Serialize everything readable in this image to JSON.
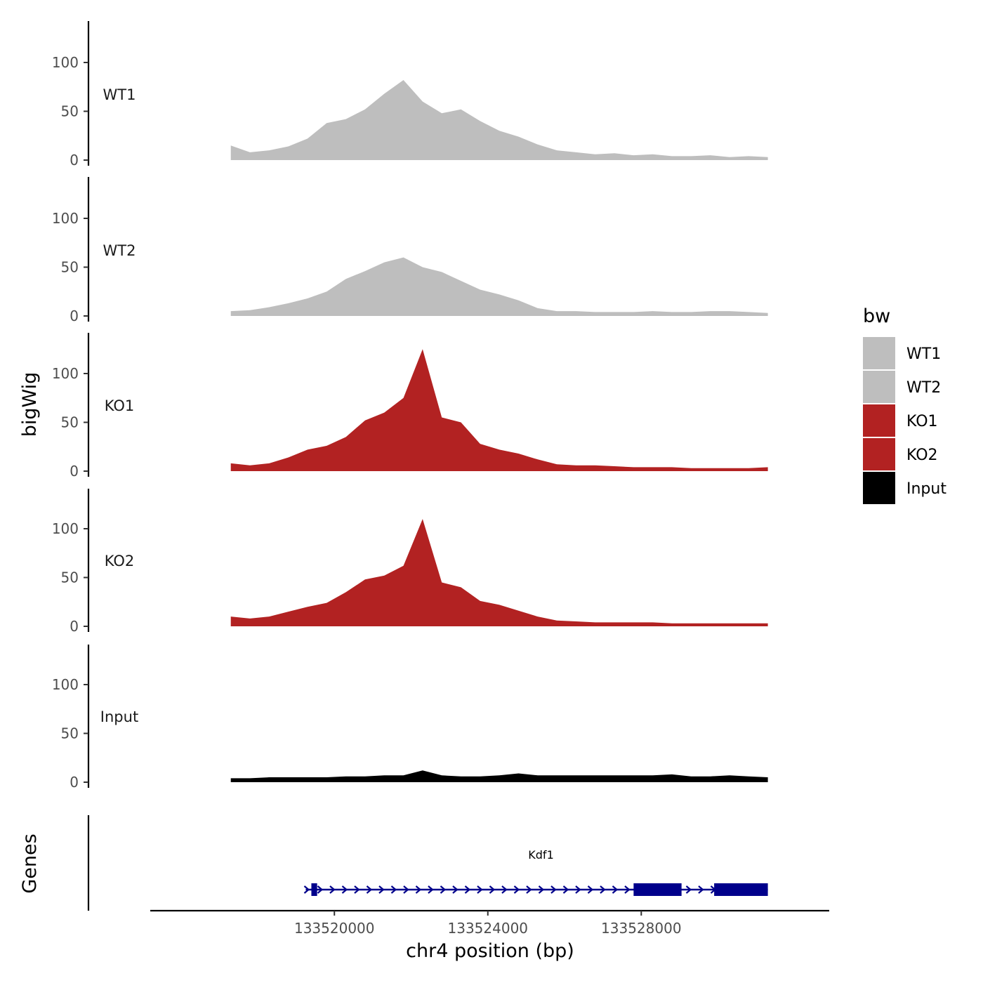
{
  "chart_data": {
    "type": "area",
    "title": "",
    "xlabel": "chr4 position (bp)",
    "ylabel": "bigWig",
    "genes_label": "Genes",
    "xlim": [
      133515200,
      133532900
    ],
    "xticks": [
      133520000,
      133524000,
      133528000
    ],
    "xtick_labels": [
      "133520000",
      "133524000",
      "133528000"
    ],
    "ylim": [
      0,
      140
    ],
    "yticks": [
      0,
      50,
      100
    ],
    "ytick_labels": [
      "0",
      "50",
      "100"
    ],
    "legend": {
      "title": "bw",
      "position": "right",
      "entries": [
        {
          "label": "WT1",
          "color": "#bebebe"
        },
        {
          "label": "WT2",
          "color": "#bebebe"
        },
        {
          "label": "KO1",
          "color": "#b22222"
        },
        {
          "label": "KO2",
          "color": "#b22222"
        },
        {
          "label": "Input",
          "color": "#000000"
        }
      ]
    },
    "x": [
      133517300,
      133517800,
      133518300,
      133518800,
      133519300,
      133519800,
      133520300,
      133520800,
      133521300,
      133521800,
      133522300,
      133522800,
      133523300,
      133523800,
      133524300,
      133524800,
      133525300,
      133525800,
      133526300,
      133526800,
      133527300,
      133527800,
      133528300,
      133528800,
      133529300,
      133529800,
      133530300,
      133530800,
      133531300
    ],
    "series": [
      {
        "name": "WT1",
        "color": "#bebebe",
        "values": [
          15,
          8,
          10,
          14,
          22,
          38,
          42,
          52,
          68,
          82,
          60,
          48,
          52,
          40,
          30,
          24,
          16,
          10,
          8,
          6,
          7,
          5,
          6,
          4,
          4,
          5,
          3,
          4,
          3
        ]
      },
      {
        "name": "WT2",
        "color": "#bebebe",
        "values": [
          5,
          6,
          9,
          13,
          18,
          25,
          38,
          46,
          55,
          60,
          50,
          45,
          36,
          27,
          22,
          16,
          8,
          5,
          5,
          4,
          4,
          4,
          5,
          4,
          4,
          5,
          5,
          4,
          3
        ]
      },
      {
        "name": "KO1",
        "color": "#b22222",
        "values": [
          8,
          6,
          8,
          14,
          22,
          26,
          35,
          52,
          60,
          75,
          125,
          55,
          50,
          28,
          22,
          18,
          12,
          7,
          6,
          6,
          5,
          4,
          4,
          4,
          3,
          3,
          3,
          3,
          4
        ]
      },
      {
        "name": "KO2",
        "color": "#b22222",
        "values": [
          10,
          8,
          10,
          15,
          20,
          24,
          35,
          48,
          52,
          62,
          110,
          45,
          40,
          26,
          22,
          16,
          10,
          6,
          5,
          4,
          4,
          4,
          4,
          3,
          3,
          3,
          3,
          3,
          3
        ]
      },
      {
        "name": "Input",
        "color": "#000000",
        "values": [
          4,
          4,
          5,
          5,
          5,
          5,
          6,
          6,
          7,
          7,
          12,
          7,
          6,
          6,
          7,
          9,
          7,
          7,
          7,
          7,
          7,
          7,
          7,
          8,
          6,
          6,
          7,
          6,
          5
        ]
      }
    ],
    "genes": [
      {
        "name": "Kdf1",
        "strand": "+",
        "start": 133519400,
        "end": 133531300,
        "color": "#00008b",
        "exons": [
          [
            133519400,
            133519550
          ],
          [
            133527800,
            133529050
          ],
          [
            133529900,
            133531300
          ]
        ]
      }
    ]
  }
}
